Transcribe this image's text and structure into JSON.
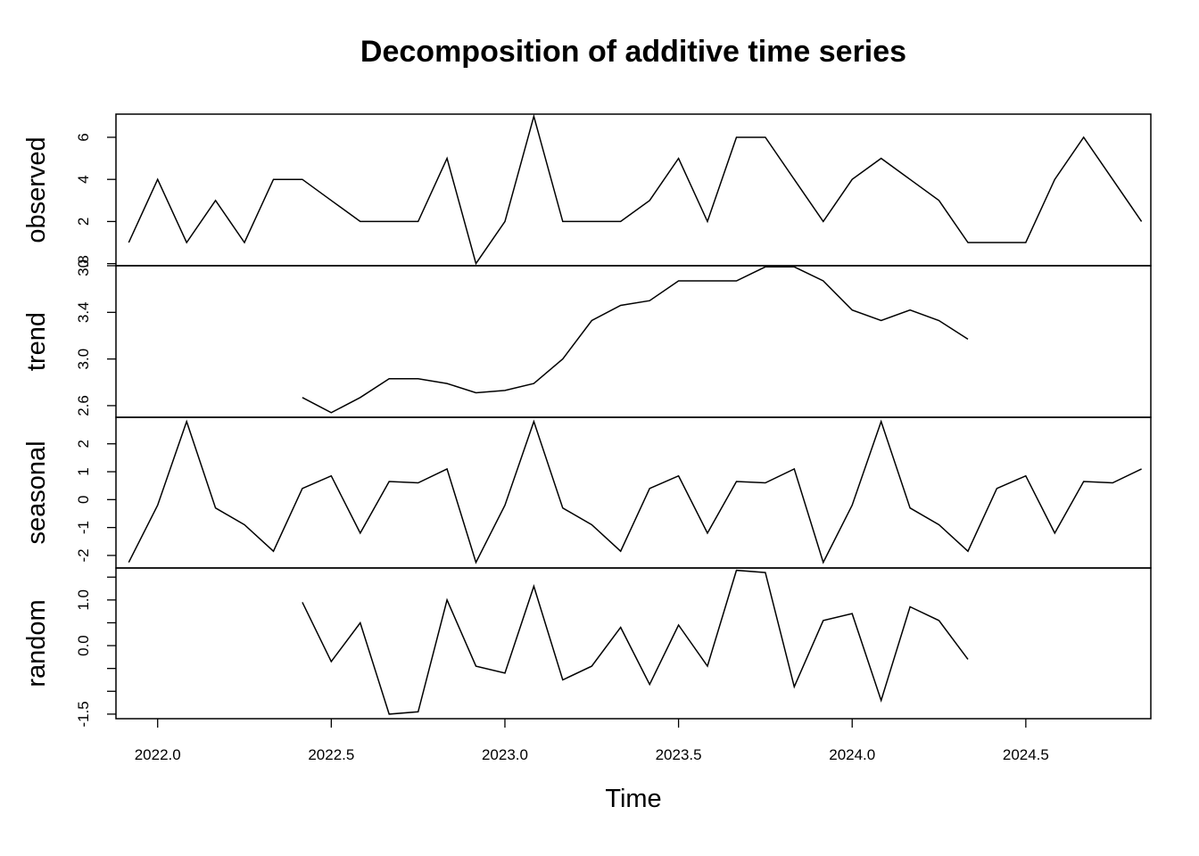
{
  "chart_data": {
    "type": "line",
    "title": "Decomposition of additive time series",
    "xlabel": "Time",
    "xlim": [
      2021.88,
      2024.86
    ],
    "x_ticks": [
      2022.0,
      2022.5,
      2023.0,
      2023.5,
      2024.0,
      2024.5
    ],
    "x_tick_labels": [
      "2022.0",
      "2022.5",
      "2023.0",
      "2023.5",
      "2024.0",
      "2024.5"
    ],
    "x_start": 2021.9167,
    "x_step": 0.08333,
    "panels": [
      {
        "name": "observed",
        "ylabel": "observed",
        "ylim": [
          -0.1,
          7.1
        ],
        "y_ticks": [
          0,
          2,
          4,
          6
        ],
        "y_tick_labels": [
          "0",
          "2",
          "4",
          "6"
        ],
        "values": [
          1,
          4,
          1,
          3,
          1,
          4,
          4,
          3,
          2,
          2,
          2,
          5,
          0,
          2,
          7,
          2,
          2,
          2,
          3,
          5,
          2,
          6,
          6,
          4,
          2,
          4,
          5,
          4,
          3,
          1,
          1,
          1,
          4,
          6,
          4,
          2
        ]
      },
      {
        "name": "trend",
        "ylabel": "trend",
        "ylim": [
          2.5,
          3.8
        ],
        "y_ticks": [
          2.6,
          3.0,
          3.4,
          3.8
        ],
        "y_tick_labels": [
          "2.6",
          "3.0",
          "3.4",
          "3.8"
        ],
        "values": [
          null,
          null,
          null,
          null,
          null,
          null,
          2.67,
          2.54,
          2.67,
          2.83,
          2.83,
          2.79,
          2.71,
          2.73,
          2.79,
          3.0,
          3.33,
          3.46,
          3.5,
          3.67,
          3.67,
          3.67,
          3.79,
          3.79,
          3.67,
          3.42,
          3.33,
          3.42,
          3.33,
          3.17,
          null,
          null,
          null,
          null,
          null,
          null
        ]
      },
      {
        "name": "seasonal",
        "ylabel": "seasonal",
        "ylim": [
          -2.45,
          2.95
        ],
        "y_ticks": [
          -2,
          -1,
          0,
          1,
          2
        ],
        "y_tick_labels": [
          "-2",
          "-1",
          "0",
          "1",
          "2"
        ],
        "values": [
          -2.25,
          -0.2,
          2.8,
          -0.3,
          -0.9,
          -1.85,
          0.4,
          0.85,
          -1.2,
          0.65,
          0.6,
          1.1,
          -2.25,
          -0.2,
          2.8,
          -0.3,
          -0.9,
          -1.85,
          0.4,
          0.85,
          -1.2,
          0.65,
          0.6,
          1.1,
          -2.25,
          -0.2,
          2.8,
          -0.3,
          -0.9,
          -1.85,
          0.4,
          0.85,
          -1.2,
          0.65,
          0.6,
          1.1
        ]
      },
      {
        "name": "random",
        "ylabel": "random",
        "ylim": [
          -1.6,
          1.7
        ],
        "y_ticks": [
          -1.5,
          -1.0,
          -0.5,
          0.0,
          0.5,
          1.0,
          1.5
        ],
        "y_tick_labels": [
          "-1.5",
          "",
          "",
          "0.0",
          "",
          "1.0",
          ""
        ],
        "values": [
          null,
          null,
          null,
          null,
          null,
          null,
          0.95,
          -0.35,
          0.5,
          -1.5,
          -1.45,
          1.0,
          -0.45,
          -0.6,
          1.3,
          -0.75,
          -0.45,
          0.4,
          -0.85,
          0.45,
          -0.45,
          1.65,
          1.6,
          -0.9,
          0.55,
          0.7,
          -1.2,
          0.85,
          0.55,
          -0.3,
          null,
          null,
          null,
          null,
          null,
          null
        ]
      }
    ]
  }
}
